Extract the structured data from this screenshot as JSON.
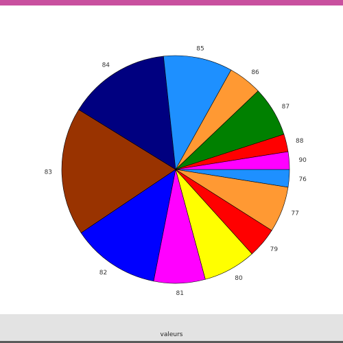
{
  "chart_data": {
    "type": "pie",
    "xlabel": "valeurs",
    "title": "",
    "legend": "none",
    "categories": [
      "76",
      "77",
      "79",
      "80",
      "81",
      "82",
      "83",
      "84",
      "85",
      "86",
      "87",
      "88",
      "90"
    ],
    "values": [
      2.5,
      6.5,
      4.3,
      7.5,
      7.3,
      12.5,
      18.2,
      14.5,
      9.8,
      4.8,
      7.1,
      2.5,
      2.5
    ],
    "colors": [
      "#1e90ff",
      "#ff9933",
      "#ff0000",
      "#ffff00",
      "#ff00ff",
      "#0000ff",
      "#993300",
      "#000080",
      "#1e90ff",
      "#ff9933",
      "#008000",
      "#ff0000",
      "#ff00ff"
    ],
    "start_angle_deg": 0,
    "direction": "clockwise"
  }
}
